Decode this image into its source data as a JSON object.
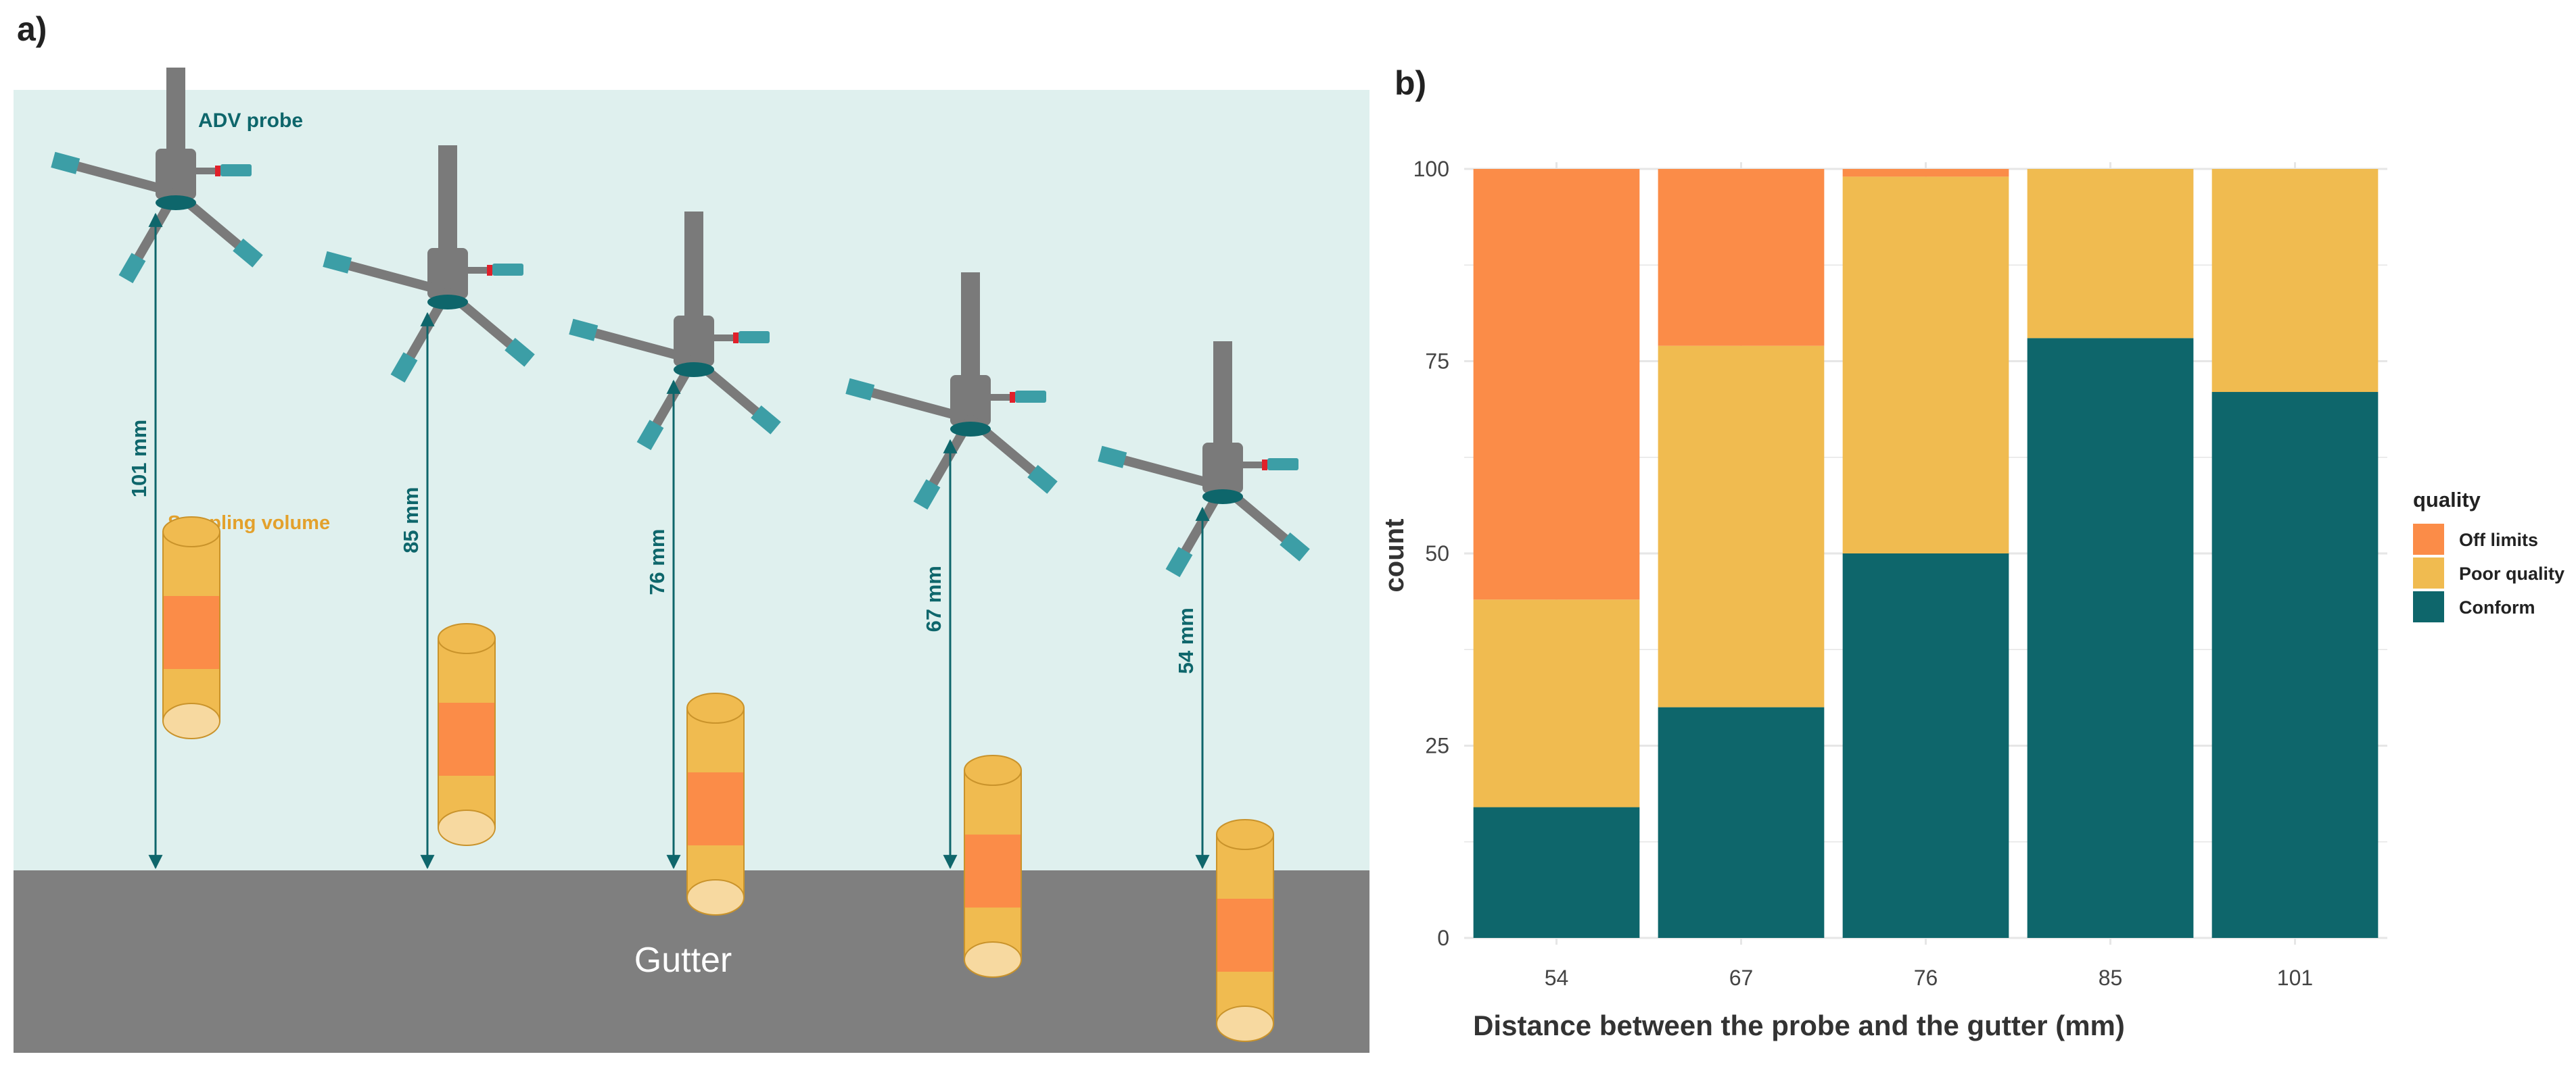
{
  "panel_a": {
    "label": "a)",
    "probe_label": "ADV probe",
    "sampling_label": "Sampling volume",
    "gutter_label": "Gutter",
    "distances": [
      "101 mm",
      "85 mm",
      "76 mm",
      "67 mm",
      "54 mm"
    ]
  },
  "panel_b": {
    "label": "b)"
  },
  "colors": {
    "water": "#dff0ee",
    "gutter": "#7f7f7f",
    "probe": "#7a7a7a",
    "teal": "#0e666b",
    "sensor": "#3c9ea6",
    "cylinder": "#f0bb50",
    "cylinder_band": "#fb8c48",
    "cylinder_cap": "#f7d9a0",
    "off_limits": "#fb8c48",
    "poor_quality": "#f0bb50",
    "conform": "#0e666b"
  },
  "chart_data": {
    "type": "bar",
    "stacked": true,
    "title": "",
    "categories": [
      "54",
      "67",
      "76",
      "85",
      "101"
    ],
    "series": [
      {
        "name": "Conform",
        "values": [
          17,
          30,
          50,
          78,
          71
        ]
      },
      {
        "name": "Poor quality",
        "values": [
          27,
          47,
          49,
          22,
          29
        ]
      },
      {
        "name": "Off limits",
        "values": [
          56,
          23,
          1,
          0,
          0
        ]
      }
    ],
    "xlabel": "Distance between the probe and the gutter (mm)",
    "ylabel": "count",
    "ylim": [
      0,
      100
    ],
    "yticks": [
      "0",
      "25",
      "50",
      "75",
      "100"
    ],
    "legend_title": "quality",
    "legend": [
      "Off limits",
      "Poor quality",
      "Conform"
    ],
    "legend_position": "right",
    "grid": true
  }
}
